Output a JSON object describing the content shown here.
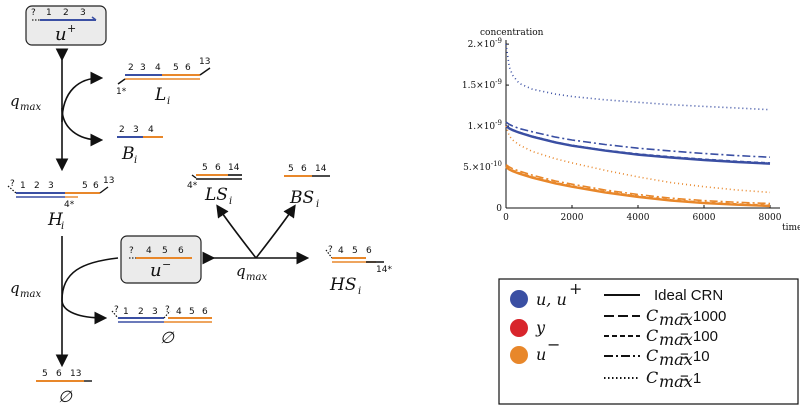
{
  "diagram": {
    "nodes": {
      "u_plus": {
        "label": "u",
        "sup": "+",
        "strand_nums": [
          "?",
          "1",
          "2",
          "3"
        ]
      },
      "u_minus": {
        "label": "u",
        "sup": "−",
        "strand_nums": [
          "?",
          "4",
          "5",
          "6"
        ]
      },
      "L": {
        "label": "L",
        "sub": "i",
        "nums_top": [
          "2",
          "3",
          "4",
          "5",
          "6",
          "13"
        ],
        "nums_bottom": [
          "1*"
        ]
      },
      "B": {
        "label": "B",
        "sub": "i",
        "nums": [
          "2",
          "3",
          "4"
        ]
      },
      "H": {
        "label": "H",
        "sub": "i",
        "nums": [
          "?",
          "1",
          "2",
          "3",
          "5",
          "6",
          "13"
        ],
        "nums_bottom": [
          "4*"
        ]
      },
      "LS": {
        "label": "LS",
        "sub": "i",
        "nums": [
          "5",
          "6",
          "14"
        ],
        "nums_bottom": [
          "4*"
        ]
      },
      "BS": {
        "label": "BS",
        "sub": "i",
        "nums": [
          "5",
          "6",
          "14"
        ]
      },
      "HS": {
        "label": "HS",
        "sub": "i",
        "nums": [
          "?",
          "4",
          "5",
          "6"
        ],
        "nums_bottom": [
          "14*"
        ]
      },
      "empty1": {
        "label": "∅",
        "nums": [
          "?",
          "1",
          "2",
          "3",
          "?",
          "4",
          "5",
          "6"
        ]
      },
      "empty2": {
        "label": "∅",
        "nums": [
          "5",
          "6",
          "13"
        ]
      }
    },
    "rate_labels": {
      "top": "q",
      "sub": "max"
    }
  },
  "chart_data": {
    "type": "line",
    "ylabel": "concentration",
    "xlabel": "time, s",
    "x_ticks": [
      0,
      2000,
      4000,
      6000,
      8000
    ],
    "y_ticks": [
      {
        "value": 0,
        "label": "0"
      },
      {
        "value": 5e-10,
        "label": "5.×10",
        "exp": "-10"
      },
      {
        "value": 1e-09,
        "label": "1.×10",
        "exp": "-9"
      },
      {
        "value": 1.5e-09,
        "label": "1.5×10",
        "exp": "-9"
      },
      {
        "value": 2e-09,
        "label": "2.×10",
        "exp": "-9"
      }
    ],
    "xlim": [
      0,
      8000
    ],
    "ylim": [
      0,
      2.05e-09
    ],
    "x": [
      0,
      100,
      200,
      400,
      800,
      1500,
      2000,
      3000,
      4000,
      5000,
      6000,
      7000,
      8000
    ],
    "series": [
      {
        "name": "u, u+ (Ideal CRN)",
        "color": "#3a4fa3",
        "dash": "solid",
        "values": [
          1e-09,
          9.7e-10,
          9.5e-10,
          9.2e-10,
          8.7e-10,
          8e-10,
          7.6e-10,
          7e-10,
          6.5e-10,
          6.15e-10,
          5.85e-10,
          5.6e-10,
          5.4e-10
        ]
      },
      {
        "name": "u, u+ (Cmax = 1000)",
        "color": "#3a4fa3",
        "dash": "8,4",
        "values": [
          1e-09,
          9.7e-10,
          9.5e-10,
          9.2e-10,
          8.7e-10,
          8e-10,
          7.6e-10,
          7e-10,
          6.55e-10,
          6.2e-10,
          5.9e-10,
          5.65e-10,
          5.45e-10
        ]
      },
      {
        "name": "u, u+ (Cmax = 100)",
        "color": "#3a4fa3",
        "dash": "4,3",
        "values": [
          1e-09,
          9.75e-10,
          9.55e-10,
          9.25e-10,
          8.75e-10,
          8.05e-10,
          7.65e-10,
          7.05e-10,
          6.6e-10,
          6.25e-10,
          5.95e-10,
          5.7e-10,
          5.5e-10
        ]
      },
      {
        "name": "u, u+ (Cmax = 10)",
        "color": "#3a4fa3",
        "dash": "8,3,2,3",
        "values": [
          1.05e-09,
          1.02e-09,
          1e-09,
          9.7e-10,
          9.3e-10,
          8.65e-10,
          8.3e-10,
          7.75e-10,
          7.3e-10,
          6.95e-10,
          6.65e-10,
          6.4e-10,
          6.2e-10
        ]
      },
      {
        "name": "u, u+ (Cmax = 1)",
        "color": "#3a4fa3",
        "dash": "1,3",
        "values": [
          2e-09,
          1.72e-09,
          1.62e-09,
          1.52e-09,
          1.45e-09,
          1.39e-09,
          1.36e-09,
          1.32e-09,
          1.29e-09,
          1.26e-09,
          1.24e-09,
          1.22e-09,
          1.2e-09
        ]
      },
      {
        "name": "u- (Ideal CRN)",
        "color": "#e8872a",
        "dash": "solid",
        "values": [
          5e-10,
          4.7e-10,
          4.5e-10,
          4.2e-10,
          3.7e-10,
          3e-10,
          2.6e-10,
          1.9e-10,
          1.35e-10,
          9e-11,
          6e-11,
          4e-11,
          2.5e-11
        ]
      },
      {
        "name": "u- (Cmax = 1000)",
        "color": "#e8872a",
        "dash": "8,4",
        "values": [
          5e-10,
          4.7e-10,
          4.5e-10,
          4.2e-10,
          3.7e-10,
          3e-10,
          2.6e-10,
          1.9e-10,
          1.35e-10,
          9e-11,
          6e-11,
          4e-11,
          2.5e-11
        ]
      },
      {
        "name": "u- (Cmax = 100)",
        "color": "#e8872a",
        "dash": "4,3",
        "values": [
          5.1e-10,
          4.8e-10,
          4.6e-10,
          4.3e-10,
          3.8e-10,
          3.1e-10,
          2.7e-10,
          2e-10,
          1.45e-10,
          1e-10,
          7e-11,
          5e-11,
          3.5e-11
        ]
      },
      {
        "name": "u- (Cmax = 10)",
        "color": "#e8872a",
        "dash": "8,3,2,3",
        "values": [
          5.3e-10,
          5e-10,
          4.8e-10,
          4.5e-10,
          4e-10,
          3.3e-10,
          2.9e-10,
          2.2e-10,
          1.65e-10,
          1.2e-10,
          9e-11,
          7e-11,
          5.5e-11
        ]
      },
      {
        "name": "u- (Cmax = 1)",
        "color": "#e8872a",
        "dash": "1,3",
        "values": [
          1e-09,
          8.8e-10,
          8.3e-10,
          7.7e-10,
          6.9e-10,
          6e-10,
          5.5e-10,
          4.6e-10,
          3.8e-10,
          3.1e-10,
          2.6e-10,
          2.2e-10,
          1.9e-10
        ]
      }
    ]
  },
  "legend": {
    "items": [
      {
        "label": "u, u",
        "sup": "+",
        "color": "#3a4fa3"
      },
      {
        "label": "y",
        "sup": "",
        "color": "#d8252c"
      },
      {
        "label": "u",
        "sup": "−",
        "color": "#e8872a"
      }
    ],
    "lines": [
      {
        "label": "Ideal CRN",
        "dash": "solid",
        "math": false
      },
      {
        "label": "C",
        "sub": "max",
        "eq": " = 1000",
        "dash": "10,4",
        "math": true
      },
      {
        "label": "C",
        "sub": "max",
        "eq": " = 100",
        "dash": "5,3",
        "math": true
      },
      {
        "label": "C",
        "sub": "max",
        "eq": " = 10",
        "dash": "9,3,2,3",
        "math": true
      },
      {
        "label": "C",
        "sub": "max",
        "eq": " = 1",
        "dash": "1.5,2.5",
        "math": true
      }
    ]
  }
}
